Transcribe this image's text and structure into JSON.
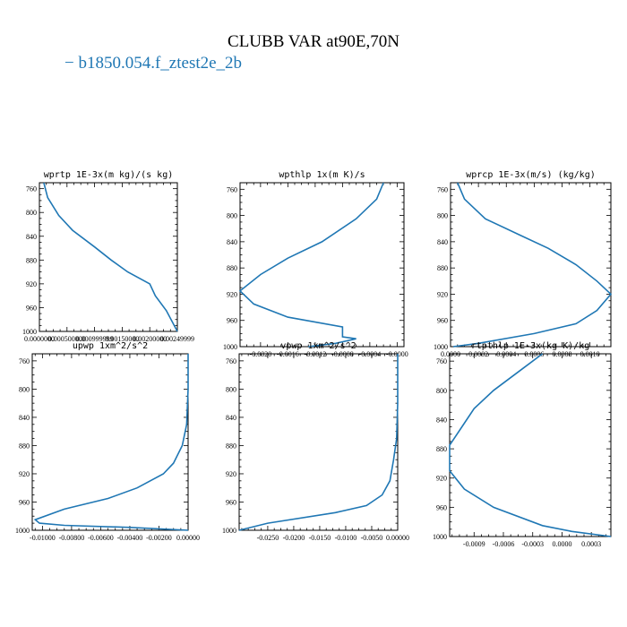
{
  "title": "CLUBB VAR at90E,70N",
  "legend": {
    "dash": "−",
    "label": "b1850.054.f_ztest2e_2b",
    "color": "#1f77b4"
  },
  "chart_data": [
    {
      "type": "line",
      "title": "wprtp  1E-3x(m kg)/(s kg)",
      "xlim": [
        0.0,
        0.0025
      ],
      "ylim": [
        1000,
        750
      ],
      "grid": false,
      "xticks": [
        0.0,
        0.0005,
        0.001,
        0.0015,
        0.002,
        0.0025
      ],
      "xtick_labels": [
        "0.0000000",
        "0.000500000",
        "0.000999999",
        "0.00150000",
        "0.00200000",
        "0.00249999"
      ],
      "yticks": [
        760,
        800,
        840,
        880,
        920,
        960,
        1000
      ],
      "ytick_labels": [
        "760",
        "800",
        "840",
        "880",
        "920",
        "960",
        "1000"
      ],
      "series": [
        {
          "color": "#1f77b4",
          "x": [
            8e-05,
            0.00015,
            0.00035,
            0.0006,
            0.001,
            0.0013,
            0.0016,
            0.002,
            0.0021,
            0.0023,
            0.0025
          ],
          "y": [
            750,
            775,
            805,
            830,
            858,
            880,
            900,
            920,
            940,
            965,
            1000
          ]
        }
      ]
    },
    {
      "type": "line",
      "title": "wpthlp  1x(m K)/s",
      "xlim": [
        -0.0023,
        0.0001
      ],
      "ylim": [
        1000,
        750
      ],
      "grid": false,
      "xticks": [
        -0.002,
        -0.0016,
        -0.0012,
        -0.0008,
        -0.0004,
        0.0
      ],
      "xtick_labels": [
        "-0.0020",
        "-0.0016",
        "-0.0012",
        "-0.0008",
        "-0.0004",
        "-0.0000"
      ],
      "yticks": [
        760,
        800,
        840,
        880,
        920,
        960,
        1000
      ],
      "ytick_labels": [
        "760",
        "800",
        "840",
        "880",
        "920",
        "960",
        "1000"
      ],
      "series": [
        {
          "color": "#1f77b4",
          "x": [
            -0.0002,
            -0.0003,
            -0.0006,
            -0.0011,
            -0.0016,
            -0.002,
            -0.0023,
            -0.0021,
            -0.0016,
            -0.0008,
            -0.0008,
            -0.0006,
            -0.0009,
            -0.0013
          ],
          "y": [
            750,
            775,
            805,
            840,
            865,
            890,
            915,
            935,
            955,
            970,
            985,
            988,
            995,
            1000
          ]
        }
      ]
    },
    {
      "type": "line",
      "title": "wprcp  1E-3x(m/s) (kg/kg)",
      "xlim": [
        0.0,
        0.00115
      ],
      "ylim": [
        1000,
        750
      ],
      "grid": false,
      "xticks": [
        0.0,
        0.0002,
        0.0004,
        0.0006,
        0.0008,
        0.001
      ],
      "xtick_labels": [
        "0.0000",
        "0.0002",
        "0.0004",
        "0.0006",
        "0.0008",
        "0.0010"
      ],
      "yticks": [
        760,
        800,
        840,
        880,
        920,
        960,
        1000
      ],
      "ytick_labels": [
        "760",
        "800",
        "840",
        "880",
        "920",
        "960",
        "1000"
      ],
      "series": [
        {
          "color": "#1f77b4",
          "x": [
            5e-05,
            0.0001,
            0.00025,
            0.0005,
            0.0007,
            0.0009,
            0.00105,
            0.00115,
            0.00105,
            0.0009,
            0.0006,
            0.0002,
            2e-05
          ],
          "y": [
            750,
            775,
            805,
            830,
            850,
            875,
            900,
            920,
            945,
            965,
            980,
            995,
            1000
          ]
        }
      ]
    },
    {
      "type": "line",
      "title": "upwp  1xm^2/s^2",
      "xlim": [
        -0.0107,
        0.0
      ],
      "ylim": [
        1000,
        750
      ],
      "grid": false,
      "xticks": [
        -0.01,
        -0.008,
        -0.006,
        -0.004,
        -0.002,
        0.0
      ],
      "xtick_labels": [
        "-0.01000",
        "-0.00800",
        "-0.00600",
        "-0.00400",
        "-0.00200",
        "0.00000"
      ],
      "yticks": [
        760,
        800,
        840,
        880,
        920,
        960,
        1000
      ],
      "ytick_labels": [
        "760",
        "800",
        "840",
        "880",
        "920",
        "960",
        "1000"
      ],
      "series": [
        {
          "color": "#1f77b4",
          "x": [
            0.0,
            0.0,
            -0.0001,
            -0.0004,
            -0.001,
            -0.0017,
            -0.0035,
            -0.0055,
            -0.0085,
            -0.0105,
            -0.0102,
            -0.0085,
            -0.004,
            0.0
          ],
          "y": [
            750,
            800,
            850,
            880,
            905,
            920,
            940,
            955,
            970,
            985,
            990,
            993,
            996,
            1000
          ]
        }
      ]
    },
    {
      "type": "line",
      "title": "vpwp  1xm^2/s^2",
      "xlim": [
        -0.0305,
        0.0
      ],
      "ylim": [
        1000,
        750
      ],
      "grid": false,
      "xticks": [
        -0.025,
        -0.02,
        -0.015,
        -0.01,
        -0.005,
        0.0
      ],
      "xtick_labels": [
        "-0.0250",
        "-0.0200",
        "-0.0150",
        "-0.0100",
        "-0.0050",
        "0.00000"
      ],
      "yticks": [
        760,
        800,
        840,
        880,
        920,
        960,
        1000
      ],
      "ytick_labels": [
        "760",
        "800",
        "840",
        "880",
        "920",
        "960",
        "1000"
      ],
      "series": [
        {
          "color": "#1f77b4",
          "x": [
            0.0,
            0.0,
            -0.0002,
            -0.0008,
            -0.0015,
            -0.003,
            -0.006,
            -0.012,
            -0.025,
            -0.0305
          ],
          "y": [
            750,
            820,
            870,
            900,
            930,
            950,
            965,
            975,
            990,
            1000
          ]
        }
      ]
    },
    {
      "type": "line",
      "title": "rtpthlp  1E-3x(kg K)/kg",
      "xlim": [
        -0.00115,
        0.0005
      ],
      "ylim": [
        1000,
        750
      ],
      "grid": false,
      "xticks": [
        -0.0009,
        -0.0006,
        -0.0003,
        0.0,
        0.0003
      ],
      "xtick_labels": [
        "-0.0009",
        "-0.0006",
        "-0.0003",
        "0.0000",
        "0.0003"
      ],
      "yticks": [
        760,
        800,
        840,
        880,
        920,
        960,
        1000
      ],
      "ytick_labels": [
        "760",
        "800",
        "840",
        "880",
        "920",
        "960",
        "1000"
      ],
      "series": [
        {
          "color": "#1f77b4",
          "x": [
            -0.0002,
            -0.0004,
            -0.0007,
            -0.0009,
            -0.001,
            -0.00115,
            -0.00115,
            -0.001,
            -0.0007,
            -0.0002,
            0.0001,
            0.0005
          ],
          "y": [
            750,
            770,
            800,
            825,
            845,
            875,
            910,
            935,
            960,
            985,
            993,
            1000
          ]
        }
      ]
    }
  ]
}
